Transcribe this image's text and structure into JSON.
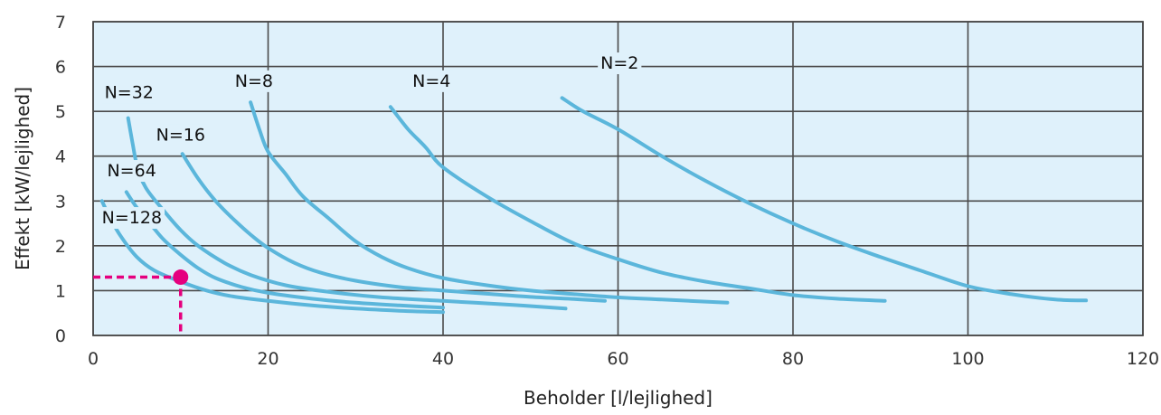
{
  "chart_data": {
    "type": "line",
    "title": "",
    "xlabel": "Beholder [l/lejlighed]",
    "ylabel": "Effekt  [kW/lejlighed]",
    "xlim": [
      0,
      120
    ],
    "ylim": [
      0,
      7
    ],
    "xticks": [
      "0",
      "20",
      "40",
      "60",
      "80",
      "100",
      "120"
    ],
    "yticks": [
      "0",
      "1",
      "2",
      "3",
      "4",
      "5",
      "6",
      "7"
    ],
    "grid": true,
    "colors": {
      "plot_bg": "#dff1fb",
      "curve": "#5bb6db",
      "grid": "#4a4a4a",
      "marker": "#e5007e"
    },
    "series": [
      {
        "name": "N=2",
        "points": [
          [
            53.6,
            5.3
          ],
          [
            56,
            5.0
          ],
          [
            60,
            4.6
          ],
          [
            65,
            4.0
          ],
          [
            70,
            3.45
          ],
          [
            75,
            2.95
          ],
          [
            80,
            2.5
          ],
          [
            85,
            2.1
          ],
          [
            90,
            1.75
          ],
          [
            95,
            1.42
          ],
          [
            100,
            1.1
          ],
          [
            105,
            0.92
          ],
          [
            110,
            0.8
          ],
          [
            113.5,
            0.78
          ]
        ]
      },
      {
        "name": "N=4",
        "points": [
          [
            34.0,
            5.1
          ],
          [
            36,
            4.6
          ],
          [
            38,
            4.2
          ],
          [
            40,
            3.75
          ],
          [
            45,
            3.1
          ],
          [
            50,
            2.55
          ],
          [
            55,
            2.05
          ],
          [
            60,
            1.7
          ],
          [
            65,
            1.4
          ],
          [
            70,
            1.2
          ],
          [
            75,
            1.05
          ],
          [
            80,
            0.9
          ],
          [
            85,
            0.82
          ],
          [
            90.5,
            0.77
          ]
        ]
      },
      {
        "name": "N=8",
        "points": [
          [
            18.0,
            5.2
          ],
          [
            19,
            4.6
          ],
          [
            20,
            4.1
          ],
          [
            22,
            3.6
          ],
          [
            24,
            3.1
          ],
          [
            27,
            2.6
          ],
          [
            30,
            2.1
          ],
          [
            33,
            1.75
          ],
          [
            36,
            1.5
          ],
          [
            40,
            1.28
          ],
          [
            45,
            1.12
          ],
          [
            50,
            1.0
          ],
          [
            55,
            0.92
          ],
          [
            60,
            0.85
          ],
          [
            65,
            0.8
          ],
          [
            72.5,
            0.73
          ]
        ]
      },
      {
        "name": "N=16",
        "points": [
          [
            10.2,
            4.05
          ],
          [
            12,
            3.5
          ],
          [
            14,
            3.0
          ],
          [
            16,
            2.6
          ],
          [
            18,
            2.25
          ],
          [
            20,
            1.95
          ],
          [
            23,
            1.62
          ],
          [
            26,
            1.4
          ],
          [
            30,
            1.22
          ],
          [
            35,
            1.08
          ],
          [
            40,
            1.0
          ],
          [
            45,
            0.93
          ],
          [
            50,
            0.86
          ],
          [
            55,
            0.81
          ],
          [
            58.5,
            0.77
          ]
        ]
      },
      {
        "name": "N=32",
        "points": [
          [
            4.0,
            4.85
          ],
          [
            4.5,
            4.3
          ],
          [
            5,
            3.8
          ],
          [
            6,
            3.3
          ],
          [
            8,
            2.8
          ],
          [
            10,
            2.35
          ],
          [
            12,
            2.0
          ],
          [
            15,
            1.62
          ],
          [
            18,
            1.35
          ],
          [
            22,
            1.12
          ],
          [
            27,
            0.97
          ],
          [
            33,
            0.85
          ],
          [
            40,
            0.77
          ],
          [
            48,
            0.68
          ],
          [
            54,
            0.6
          ]
        ]
      },
      {
        "name": "N=64",
        "points": [
          [
            3.8,
            3.2
          ],
          [
            5,
            2.85
          ],
          [
            6.5,
            2.5
          ],
          [
            8,
            2.15
          ],
          [
            10,
            1.8
          ],
          [
            12,
            1.5
          ],
          [
            14,
            1.28
          ],
          [
            17,
            1.08
          ],
          [
            20,
            0.95
          ],
          [
            25,
            0.82
          ],
          [
            30,
            0.73
          ],
          [
            35,
            0.67
          ],
          [
            40,
            0.62
          ]
        ]
      },
      {
        "name": "N=128",
        "points": [
          [
            1.0,
            3.0
          ],
          [
            2,
            2.6
          ],
          [
            3.2,
            2.2
          ],
          [
            5,
            1.75
          ],
          [
            7,
            1.45
          ],
          [
            10,
            1.2
          ],
          [
            13,
            1.0
          ],
          [
            16,
            0.87
          ],
          [
            20,
            0.77
          ],
          [
            25,
            0.67
          ],
          [
            30,
            0.6
          ],
          [
            35,
            0.55
          ],
          [
            40,
            0.52
          ]
        ]
      }
    ],
    "labels": [
      {
        "text": "N=2",
        "at": [
          58,
          5.95
        ]
      },
      {
        "text": "N=4",
        "at": [
          36.5,
          5.55
        ]
      },
      {
        "text": "N=8",
        "at": [
          16.2,
          5.55
        ]
      },
      {
        "text": "N=32",
        "at": [
          1.3,
          5.3
        ]
      },
      {
        "text": "N=16",
        "at": [
          7.2,
          4.35
        ]
      },
      {
        "text": "N=64",
        "at": [
          1.6,
          3.55
        ]
      },
      {
        "text": "N=128",
        "at": [
          1.0,
          2.5
        ]
      }
    ],
    "reference_point": {
      "x": 10,
      "y": 1.3
    }
  }
}
